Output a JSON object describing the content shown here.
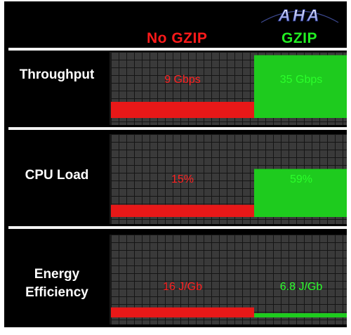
{
  "header": {
    "logo_text": "AHA",
    "no_gzip_label": "No GZIP",
    "gzip_label": "GZIP"
  },
  "colors": {
    "no_gzip": "#e81818",
    "gzip": "#1ecb1e",
    "background": "#000000",
    "panel": "#3a3a3a"
  },
  "chart_data": [
    {
      "type": "area",
      "title": "Throughput",
      "categories": [
        "No GZIP",
        "GZIP"
      ],
      "values": [
        9,
        35
      ],
      "value_labels": [
        "9 Gbps",
        "35 Gbps"
      ],
      "unit": "Gbps",
      "ylim": [
        0,
        36
      ],
      "grid": true
    },
    {
      "type": "area",
      "title": "CPU Load",
      "categories": [
        "No GZIP",
        "GZIP"
      ],
      "values": [
        15,
        59
      ],
      "value_labels": [
        "15%",
        "59%"
      ],
      "unit": "%",
      "ylim": [
        0,
        100
      ],
      "grid": true
    },
    {
      "type": "area",
      "title": "Energy Efficiency",
      "categories": [
        "No GZIP",
        "GZIP"
      ],
      "values": [
        16,
        6.8
      ],
      "value_labels": [
        "16 J/Gb",
        "6.8 J/Gb"
      ],
      "unit": "J/Gb",
      "ylim": [
        0,
        130
      ],
      "grid": true
    }
  ]
}
